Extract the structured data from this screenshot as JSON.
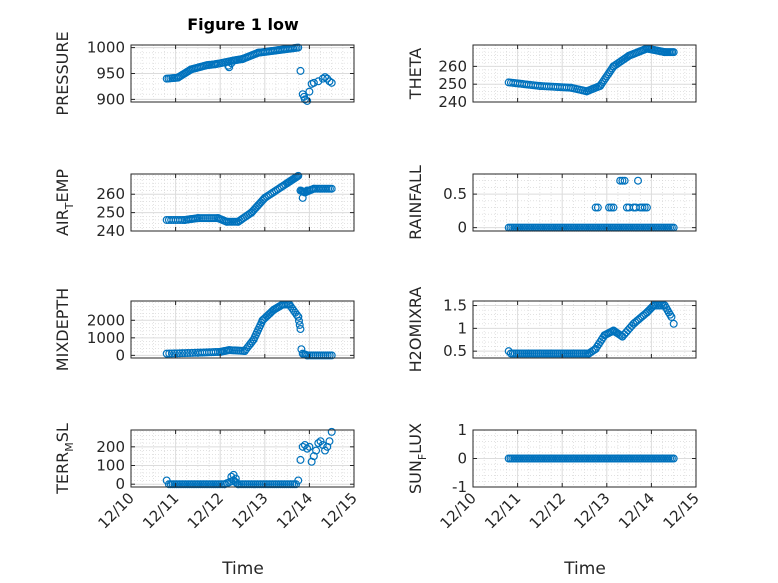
{
  "figure": {
    "title": "Figure 1 low",
    "marker_color": "#0072bd",
    "xlabel": "Time"
  },
  "chart_data": [
    {
      "type": "scatter",
      "ylabel": "PRESSURE",
      "ylabel_sub": "",
      "ylabel_tail": "",
      "ylim": [
        895,
        1005
      ],
      "yticks": [
        900,
        950,
        1000
      ],
      "ytick_labels": [
        "900",
        "950",
        "1000"
      ],
      "xlim": [
        0,
        5
      ],
      "xticks": [
        0,
        1,
        2,
        3,
        4,
        5
      ],
      "xtick_labels": [
        "12/10",
        "12/11",
        "12/12",
        "12/13",
        "12/14",
        "12/15"
      ],
      "show_xtick_labels": false,
      "grid": true,
      "segments": [
        [
          0.8,
          940,
          1.05,
          942,
          6
        ],
        [
          1.05,
          942,
          1.35,
          958,
          10
        ],
        [
          1.35,
          958,
          1.7,
          966,
          10
        ],
        [
          1.7,
          966,
          1.9,
          968,
          6
        ],
        [
          1.9,
          968,
          2.3,
          975,
          10
        ],
        [
          2.3,
          975,
          2.5,
          978,
          6
        ],
        [
          2.5,
          978,
          2.85,
          990,
          10
        ],
        [
          2.85,
          990,
          3.3,
          995,
          12
        ],
        [
          3.3,
          995,
          3.75,
          1000,
          12
        ]
      ],
      "points": [
        [
          2.18,
          965
        ],
        [
          2.2,
          962
        ],
        [
          2.25,
          970
        ],
        [
          3.8,
          955
        ],
        [
          3.85,
          910
        ],
        [
          3.88,
          905
        ],
        [
          3.9,
          900
        ],
        [
          3.95,
          897
        ],
        [
          4.0,
          915
        ],
        [
          4.05,
          930
        ],
        [
          4.1,
          932
        ],
        [
          4.2,
          935
        ],
        [
          4.3,
          940
        ],
        [
          4.35,
          943
        ],
        [
          4.4,
          940
        ],
        [
          4.45,
          935
        ],
        [
          4.5,
          932
        ]
      ]
    },
    {
      "type": "scatter",
      "ylabel": "THETA",
      "ylabel_sub": "",
      "ylabel_tail": "",
      "ylim": [
        240,
        272
      ],
      "yticks": [
        240,
        250,
        260
      ],
      "ytick_labels": [
        "240",
        "250",
        "260"
      ],
      "xlim": [
        0,
        5
      ],
      "xticks": [
        0,
        1,
        2,
        3,
        4,
        5
      ],
      "xtick_labels": [
        "12/10",
        "12/11",
        "12/12",
        "12/13",
        "12/14",
        "12/15"
      ],
      "show_xtick_labels": false,
      "grid": true,
      "segments": [
        [
          0.8,
          251,
          1.5,
          249,
          14
        ],
        [
          1.5,
          249,
          2.2,
          248,
          14
        ],
        [
          2.2,
          248,
          2.55,
          246,
          8
        ],
        [
          2.55,
          246,
          2.85,
          249,
          8
        ],
        [
          2.85,
          249,
          3.15,
          260,
          10
        ],
        [
          3.15,
          260,
          3.5,
          266,
          10
        ],
        [
          3.5,
          266,
          3.9,
          270,
          12
        ],
        [
          3.9,
          270,
          4.3,
          268,
          12
        ],
        [
          4.3,
          268,
          4.5,
          268,
          6
        ]
      ],
      "points": []
    },
    {
      "type": "scatter",
      "ylabel": "AIR",
      "ylabel_sub": "T",
      "ylabel_tail": "EMP",
      "ylim": [
        240,
        271
      ],
      "yticks": [
        240,
        250,
        260
      ],
      "ytick_labels": [
        "240",
        "250",
        "260"
      ],
      "xlim": [
        0,
        5
      ],
      "xticks": [
        0,
        1,
        2,
        3,
        4,
        5
      ],
      "xtick_labels": [
        "12/10",
        "12/11",
        "12/12",
        "12/13",
        "12/14",
        "12/15"
      ],
      "show_xtick_labels": false,
      "grid": true,
      "segments": [
        [
          0.8,
          246,
          1.2,
          246,
          8
        ],
        [
          1.2,
          246,
          1.5,
          247,
          8
        ],
        [
          1.5,
          247,
          1.95,
          247,
          10
        ],
        [
          1.95,
          247,
          2.15,
          245,
          6
        ],
        [
          2.15,
          245,
          2.4,
          245,
          6
        ],
        [
          2.4,
          245,
          2.7,
          250,
          8
        ],
        [
          2.7,
          250,
          3.0,
          258,
          10
        ],
        [
          3.0,
          258,
          3.5,
          266,
          12
        ],
        [
          3.5,
          266,
          3.75,
          270,
          10
        ],
        [
          3.8,
          262,
          3.9,
          261,
          4
        ],
        [
          3.9,
          261,
          4.1,
          263,
          6
        ],
        [
          4.1,
          263,
          4.5,
          263,
          10
        ]
      ],
      "points": [
        [
          3.85,
          258
        ],
        [
          3.95,
          262
        ]
      ]
    },
    {
      "type": "scatter",
      "ylabel": "RAINFALL",
      "ylabel_sub": "",
      "ylabel_tail": "",
      "ylim": [
        -0.05,
        0.8
      ],
      "yticks": [
        0,
        0.5
      ],
      "ytick_labels": [
        "0",
        "0.5"
      ],
      "xlim": [
        0,
        5
      ],
      "xticks": [
        0,
        1,
        2,
        3,
        4,
        5
      ],
      "xtick_labels": [
        "12/10",
        "12/11",
        "12/12",
        "12/13",
        "12/14",
        "12/15"
      ],
      "show_xtick_labels": false,
      "grid": true,
      "segments": [
        [
          0.8,
          0,
          4.5,
          0,
          90
        ]
      ],
      "points": [
        [
          2.75,
          0.3
        ],
        [
          2.8,
          0.3
        ],
        [
          3.05,
          0.3
        ],
        [
          3.1,
          0.3
        ],
        [
          3.15,
          0.3
        ],
        [
          3.3,
          0.7
        ],
        [
          3.35,
          0.7
        ],
        [
          3.4,
          0.7
        ],
        [
          3.45,
          0.3
        ],
        [
          3.5,
          0.3
        ],
        [
          3.6,
          0.3
        ],
        [
          3.65,
          0.3
        ],
        [
          3.7,
          0.7
        ],
        [
          3.75,
          0.3
        ],
        [
          3.8,
          0.3
        ],
        [
          3.85,
          0.3
        ],
        [
          3.9,
          0.3
        ]
      ]
    },
    {
      "type": "scatter",
      "ylabel": "MIXDEPTH",
      "ylabel_sub": "",
      "ylabel_tail": "",
      "ylim": [
        -150,
        3100
      ],
      "yticks": [
        0,
        1000,
        2000
      ],
      "ytick_labels": [
        "0",
        "1000",
        "2000"
      ],
      "xlim": [
        0,
        5
      ],
      "xticks": [
        0,
        1,
        2,
        3,
        4,
        5
      ],
      "xtick_labels": [
        "12/10",
        "12/11",
        "12/12",
        "12/13",
        "12/14",
        "12/15"
      ],
      "show_xtick_labels": false,
      "grid": true,
      "segments": [
        [
          0.8,
          100,
          1.5,
          150,
          12
        ],
        [
          1.5,
          150,
          2.0,
          200,
          10
        ],
        [
          2.0,
          200,
          2.2,
          300,
          6
        ],
        [
          2.2,
          300,
          2.55,
          250,
          8
        ],
        [
          2.55,
          250,
          2.75,
          900,
          6
        ],
        [
          2.75,
          900,
          2.95,
          2000,
          8
        ],
        [
          2.95,
          2000,
          3.2,
          2600,
          8
        ],
        [
          3.2,
          2600,
          3.4,
          2900,
          6
        ],
        [
          3.4,
          2900,
          3.55,
          2900,
          4
        ],
        [
          3.55,
          2900,
          3.75,
          2200,
          6
        ],
        [
          3.75,
          2200,
          3.8,
          1500,
          3
        ],
        [
          3.85,
          100,
          3.95,
          0,
          3
        ],
        [
          3.95,
          0,
          4.5,
          0,
          12
        ]
      ],
      "points": [
        [
          3.82,
          350
        ]
      ]
    },
    {
      "type": "scatter",
      "ylabel": "H2OMIXRA",
      "ylabel_sub": "",
      "ylabel_tail": "",
      "ylim": [
        0.35,
        1.6
      ],
      "yticks": [
        0.5,
        1,
        1.5
      ],
      "ytick_labels": [
        "0.5",
        "1",
        "1.5"
      ],
      "xlim": [
        0,
        5
      ],
      "xticks": [
        0,
        1,
        2,
        3,
        4,
        5
      ],
      "xtick_labels": [
        "12/10",
        "12/11",
        "12/12",
        "12/13",
        "12/14",
        "12/15"
      ],
      "show_xtick_labels": false,
      "grid": true,
      "segments": [
        [
          0.85,
          0.45,
          2.6,
          0.45,
          40
        ],
        [
          2.6,
          0.45,
          2.75,
          0.55,
          4
        ],
        [
          2.75,
          0.55,
          2.95,
          0.85,
          6
        ],
        [
          2.95,
          0.85,
          3.15,
          0.95,
          6
        ],
        [
          3.15,
          0.95,
          3.35,
          0.82,
          6
        ],
        [
          3.35,
          0.82,
          3.6,
          1.1,
          6
        ],
        [
          3.6,
          1.1,
          3.9,
          1.35,
          8
        ],
        [
          3.9,
          1.35,
          4.05,
          1.5,
          5
        ],
        [
          4.05,
          1.5,
          4.3,
          1.5,
          6
        ],
        [
          4.3,
          1.5,
          4.45,
          1.25,
          5
        ]
      ],
      "points": [
        [
          0.8,
          0.5
        ],
        [
          4.5,
          1.1
        ]
      ]
    },
    {
      "type": "scatter",
      "ylabel": "TERR",
      "ylabel_sub": "M",
      "ylabel_tail": "SL",
      "ylim": [
        -15,
        290
      ],
      "yticks": [
        0,
        100,
        200
      ],
      "ytick_labels": [
        "0",
        "100",
        "200"
      ],
      "xlim": [
        0,
        5
      ],
      "xticks": [
        0,
        1,
        2,
        3,
        4,
        5
      ],
      "xtick_labels": [
        "12/10",
        "12/11",
        "12/12",
        "12/13",
        "12/14",
        "12/15"
      ],
      "show_xtick_labels": true,
      "grid": true,
      "segments": [
        [
          0.85,
          0,
          2.1,
          0,
          30
        ],
        [
          2.1,
          0,
          2.3,
          20,
          4
        ],
        [
          2.3,
          20,
          2.4,
          0,
          3
        ],
        [
          2.4,
          0,
          3.7,
          0,
          30
        ]
      ],
      "points": [
        [
          0.8,
          20
        ],
        [
          2.25,
          40
        ],
        [
          2.3,
          50
        ],
        [
          2.35,
          30
        ],
        [
          3.75,
          20
        ],
        [
          3.8,
          130
        ],
        [
          3.85,
          200
        ],
        [
          3.9,
          210
        ],
        [
          3.95,
          190
        ],
        [
          4.0,
          200
        ],
        [
          4.05,
          120
        ],
        [
          4.1,
          150
        ],
        [
          4.15,
          180
        ],
        [
          4.2,
          220
        ],
        [
          4.25,
          230
        ],
        [
          4.3,
          210
        ],
        [
          4.35,
          180
        ],
        [
          4.4,
          200
        ],
        [
          4.45,
          230
        ],
        [
          4.5,
          280
        ]
      ]
    },
    {
      "type": "scatter",
      "ylabel": "SUN",
      "ylabel_sub": "F",
      "ylabel_tail": "LUX",
      "ylim": [
        -1,
        1
      ],
      "yticks": [
        -1,
        0,
        1
      ],
      "ytick_labels": [
        "-1",
        "0",
        "1"
      ],
      "xlim": [
        0,
        5
      ],
      "xticks": [
        0,
        1,
        2,
        3,
        4,
        5
      ],
      "xtick_labels": [
        "12/10",
        "12/11",
        "12/12",
        "12/13",
        "12/14",
        "12/15"
      ],
      "show_xtick_labels": true,
      "grid": true,
      "segments": [
        [
          0.8,
          0,
          4.5,
          0,
          90
        ]
      ],
      "points": []
    }
  ]
}
